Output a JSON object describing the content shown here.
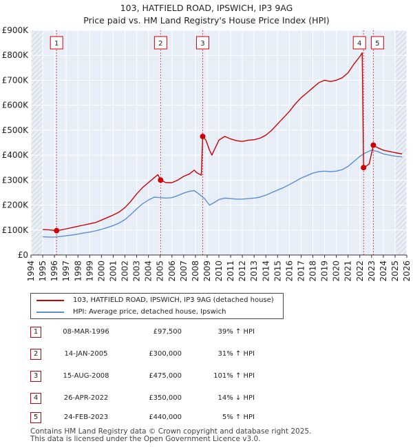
{
  "header": {
    "title_line1": "103, HATFIELD ROAD, IPSWICH, IP3 9AG",
    "title_line2": "Price paid vs. HM Land Registry's House Price Index (HPI)"
  },
  "chart_data": {
    "type": "line",
    "title": "103, HATFIELD ROAD, IPSWICH, IP3 9AG — Price paid vs. HM Land Registry's House Price Index (HPI)",
    "xlabel": "",
    "ylabel": "",
    "xlim": [
      1994,
      2026
    ],
    "ylim": [
      0,
      900000
    ],
    "y_ticks": [
      {
        "value": 0,
        "label": "£0"
      },
      {
        "value": 100000,
        "label": "£100K"
      },
      {
        "value": 200000,
        "label": "£200K"
      },
      {
        "value": 300000,
        "label": "£300K"
      },
      {
        "value": 400000,
        "label": "£400K"
      },
      {
        "value": 500000,
        "label": "£500K"
      },
      {
        "value": 600000,
        "label": "£600K"
      },
      {
        "value": 700000,
        "label": "£700K"
      },
      {
        "value": 800000,
        "label": "£800K"
      },
      {
        "value": 900000,
        "label": "£900K"
      }
    ],
    "x_ticks": [
      1994,
      1995,
      1996,
      1997,
      1998,
      1999,
      2000,
      2001,
      2002,
      2003,
      2004,
      2005,
      2006,
      2007,
      2008,
      2009,
      2010,
      2011,
      2012,
      2013,
      2014,
      2015,
      2016,
      2017,
      2018,
      2019,
      2020,
      2021,
      2022,
      2023,
      2024,
      2025,
      2026
    ],
    "grid": true,
    "hatched_regions": [
      [
        1994,
        1995
      ],
      [
        2025,
        2026
      ]
    ],
    "colors": {
      "property": "#cc0000",
      "hpi": "#5b8fd1",
      "shade": "#e8eef8",
      "grid": "#ffffff"
    },
    "series": [
      {
        "name": "103, HATFIELD ROAD, IPSWICH, IP3 9AG (detached house)",
        "color": "#cc0000",
        "points": [
          [
            1995.0,
            102000
          ],
          [
            1995.5,
            101000
          ],
          [
            1996.18,
            97500
          ],
          [
            1996.5,
            100000
          ],
          [
            1997.0,
            105000
          ],
          [
            1997.5,
            110000
          ],
          [
            1998.0,
            115000
          ],
          [
            1998.5,
            120000
          ],
          [
            1999.0,
            125000
          ],
          [
            1999.5,
            130000
          ],
          [
            2000.0,
            140000
          ],
          [
            2000.5,
            150000
          ],
          [
            2001.0,
            160000
          ],
          [
            2001.5,
            172000
          ],
          [
            2002.0,
            190000
          ],
          [
            2002.5,
            215000
          ],
          [
            2003.0,
            245000
          ],
          [
            2003.5,
            270000
          ],
          [
            2004.0,
            290000
          ],
          [
            2004.5,
            310000
          ],
          [
            2004.8,
            322000
          ],
          [
            2005.04,
            300000
          ],
          [
            2005.5,
            290000
          ],
          [
            2006.0,
            290000
          ],
          [
            2006.5,
            300000
          ],
          [
            2007.0,
            315000
          ],
          [
            2007.5,
            325000
          ],
          [
            2007.9,
            340000
          ],
          [
            2008.1,
            330000
          ],
          [
            2008.5,
            320000
          ],
          [
            2008.62,
            475000
          ],
          [
            2008.9,
            460000
          ],
          [
            2009.2,
            420000
          ],
          [
            2009.4,
            400000
          ],
          [
            2009.7,
            430000
          ],
          [
            2010.0,
            460000
          ],
          [
            2010.5,
            475000
          ],
          [
            2011.0,
            465000
          ],
          [
            2011.5,
            458000
          ],
          [
            2012.0,
            455000
          ],
          [
            2012.5,
            460000
          ],
          [
            2013.0,
            462000
          ],
          [
            2013.5,
            468000
          ],
          [
            2014.0,
            480000
          ],
          [
            2014.5,
            500000
          ],
          [
            2015.0,
            525000
          ],
          [
            2015.5,
            550000
          ],
          [
            2016.0,
            575000
          ],
          [
            2016.5,
            605000
          ],
          [
            2017.0,
            630000
          ],
          [
            2017.5,
            650000
          ],
          [
            2018.0,
            670000
          ],
          [
            2018.5,
            690000
          ],
          [
            2019.0,
            700000
          ],
          [
            2019.5,
            695000
          ],
          [
            2020.0,
            700000
          ],
          [
            2020.5,
            710000
          ],
          [
            2021.0,
            730000
          ],
          [
            2021.5,
            765000
          ],
          [
            2022.0,
            795000
          ],
          [
            2022.2,
            810000
          ],
          [
            2022.32,
            350000
          ],
          [
            2022.5,
            355000
          ],
          [
            2022.8,
            365000
          ],
          [
            2023.15,
            440000
          ],
          [
            2023.5,
            430000
          ],
          [
            2024.0,
            420000
          ],
          [
            2024.5,
            415000
          ],
          [
            2025.0,
            410000
          ],
          [
            2025.6,
            405000
          ]
        ]
      },
      {
        "name": "HPI: Average price, detached house, Ipswich",
        "color": "#5b8fd1",
        "points": [
          [
            1995.0,
            73000
          ],
          [
            1995.5,
            72000
          ],
          [
            1996.0,
            72000
          ],
          [
            1996.5,
            74000
          ],
          [
            1997.0,
            77000
          ],
          [
            1997.5,
            80000
          ],
          [
            1998.0,
            84000
          ],
          [
            1998.5,
            88000
          ],
          [
            1999.0,
            92000
          ],
          [
            1999.5,
            97000
          ],
          [
            2000.0,
            103000
          ],
          [
            2000.5,
            110000
          ],
          [
            2001.0,
            118000
          ],
          [
            2001.5,
            128000
          ],
          [
            2002.0,
            142000
          ],
          [
            2002.5,
            162000
          ],
          [
            2003.0,
            185000
          ],
          [
            2003.5,
            205000
          ],
          [
            2004.0,
            220000
          ],
          [
            2004.5,
            232000
          ],
          [
            2005.0,
            230000
          ],
          [
            2005.5,
            228000
          ],
          [
            2006.0,
            230000
          ],
          [
            2006.5,
            238000
          ],
          [
            2007.0,
            248000
          ],
          [
            2007.5,
            255000
          ],
          [
            2007.9,
            258000
          ],
          [
            2008.3,
            245000
          ],
          [
            2008.8,
            225000
          ],
          [
            2009.2,
            200000
          ],
          [
            2009.6,
            210000
          ],
          [
            2010.0,
            222000
          ],
          [
            2010.5,
            228000
          ],
          [
            2011.0,
            226000
          ],
          [
            2011.5,
            224000
          ],
          [
            2012.0,
            224000
          ],
          [
            2012.5,
            226000
          ],
          [
            2013.0,
            228000
          ],
          [
            2013.5,
            232000
          ],
          [
            2014.0,
            240000
          ],
          [
            2014.5,
            250000
          ],
          [
            2015.0,
            260000
          ],
          [
            2015.5,
            270000
          ],
          [
            2016.0,
            282000
          ],
          [
            2016.5,
            295000
          ],
          [
            2017.0,
            308000
          ],
          [
            2017.5,
            318000
          ],
          [
            2018.0,
            328000
          ],
          [
            2018.5,
            334000
          ],
          [
            2019.0,
            336000
          ],
          [
            2019.5,
            334000
          ],
          [
            2020.0,
            336000
          ],
          [
            2020.5,
            342000
          ],
          [
            2021.0,
            355000
          ],
          [
            2021.5,
            375000
          ],
          [
            2022.0,
            395000
          ],
          [
            2022.5,
            410000
          ],
          [
            2023.0,
            420000
          ],
          [
            2023.5,
            415000
          ],
          [
            2024.0,
            405000
          ],
          [
            2024.5,
            400000
          ],
          [
            2025.0,
            396000
          ],
          [
            2025.6,
            393000
          ]
        ]
      }
    ],
    "sale_markers": [
      {
        "n": "1",
        "x": 1996.18,
        "y": 97500
      },
      {
        "n": "2",
        "x": 2005.04,
        "y": 300000
      },
      {
        "n": "3",
        "x": 2008.62,
        "y": 475000
      },
      {
        "n": "4",
        "x": 2022.32,
        "y": 350000
      },
      {
        "n": "5",
        "x": 2023.15,
        "y": 440000
      }
    ]
  },
  "legend": {
    "property_label": "103, HATFIELD ROAD, IPSWICH, IP3 9AG (detached house)",
    "hpi_label": "HPI: Average price, detached house, Ipswich"
  },
  "sales": [
    {
      "n": "1",
      "date": "08-MAR-1996",
      "price": "£97,500",
      "hpi": "39% ↑ HPI"
    },
    {
      "n": "2",
      "date": "14-JAN-2005",
      "price": "£300,000",
      "hpi": "31% ↑ HPI"
    },
    {
      "n": "3",
      "date": "15-AUG-2008",
      "price": "£475,000",
      "hpi": "101% ↑ HPI"
    },
    {
      "n": "4",
      "date": "26-APR-2022",
      "price": "£350,000",
      "hpi": "14% ↓ HPI"
    },
    {
      "n": "5",
      "date": "24-FEB-2023",
      "price": "£440,000",
      "hpi": "5% ↑ HPI"
    }
  ],
  "footer": {
    "line1": "Contains HM Land Registry data © Crown copyright and database right 2025.",
    "line2": "This data is licensed under the Open Government Licence v3.0."
  }
}
